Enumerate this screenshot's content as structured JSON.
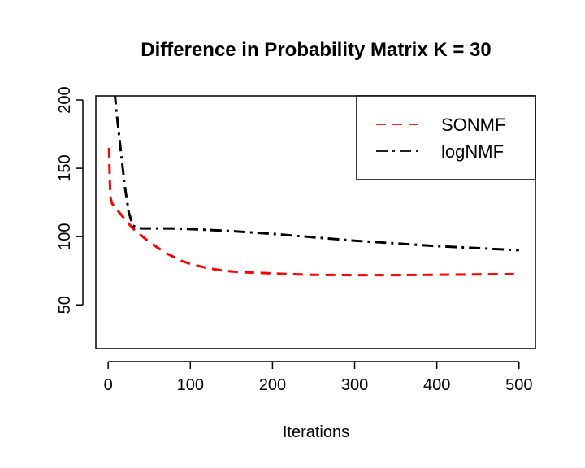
{
  "chart_data": {
    "type": "line",
    "title": "Difference in Probability Matrix K = 30",
    "xlabel": "Iterations",
    "ylabel": "",
    "xlim": [
      -15,
      520
    ],
    "ylim": [
      18,
      203
    ],
    "xticks": [
      0,
      100,
      200,
      300,
      400,
      500
    ],
    "xtick_labels": [
      "0",
      "100",
      "200",
      "300",
      "400",
      "500"
    ],
    "yticks": [
      50,
      100,
      150,
      200
    ],
    "ytick_labels": [
      "50",
      "100",
      "150",
      "200"
    ],
    "grid": false,
    "legend_position": "top-right",
    "series": [
      {
        "name": "SONMF",
        "color": "#ff0000",
        "dash": "dashed",
        "x": [
          1,
          2,
          3,
          5,
          10,
          20,
          30,
          40,
          50,
          60,
          70,
          80,
          90,
          100,
          120,
          140,
          160,
          180,
          200,
          220,
          250,
          300,
          350,
          400,
          450,
          500
        ],
        "y": [
          165,
          140,
          128,
          124,
          120,
          113,
          106,
          101,
          96,
          92,
          88,
          85,
          82,
          80,
          77,
          75,
          74,
          73.5,
          73,
          72.5,
          72,
          71.8,
          71.8,
          72,
          72.3,
          72.5
        ]
      },
      {
        "name": "logNMF",
        "color": "#000000",
        "dash": "dashdot",
        "x": [
          8,
          10,
          15,
          20,
          25,
          30,
          35,
          40,
          50,
          75,
          100,
          150,
          200,
          250,
          300,
          350,
          400,
          450,
          500
        ],
        "y": [
          205,
          192,
          165,
          138,
          118,
          108,
          106.5,
          106,
          106,
          106,
          105.5,
          104,
          102,
          99.5,
          97,
          95,
          93,
          91.5,
          90
        ]
      }
    ]
  }
}
